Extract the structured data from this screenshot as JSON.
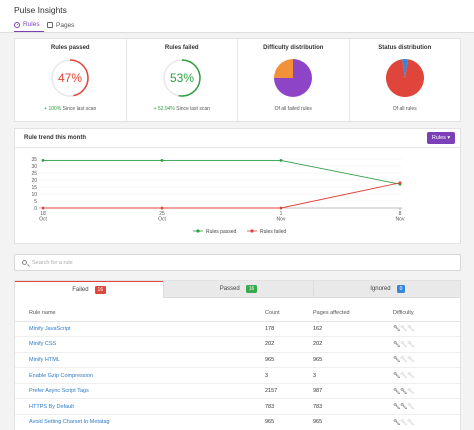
{
  "app": {
    "title": "Pulse Insights"
  },
  "nav": {
    "tabs": [
      {
        "label": "Rules",
        "icon": "rules-icon"
      },
      {
        "label": "Pages",
        "icon": "pages-icon"
      }
    ]
  },
  "summary": {
    "rules_passed": {
      "title": "Rules passed",
      "value": "47%",
      "percent": 47,
      "delta": "+ 100%",
      "delta_text": "Since last scan",
      "color": "#e0453b"
    },
    "rules_failed": {
      "title": "Rules failed",
      "value": "53%",
      "percent": 53,
      "delta": "+ 52.94%",
      "delta_text": "Since last scan",
      "color": "#2e9f44"
    },
    "difficulty": {
      "title": "Difficulty distribution",
      "caption": "Of all failed rules",
      "slices": [
        {
          "value": 75,
          "color": "#8e44c7"
        },
        {
          "value": 25,
          "color": "#f2913a"
        }
      ]
    },
    "status": {
      "title": "Status distribution",
      "caption": "Of all rules",
      "slices": [
        {
          "value": 95,
          "color": "#e0453b"
        },
        {
          "value": 5,
          "color": "#3a86d6"
        }
      ]
    }
  },
  "trend": {
    "title": "Rule trend this month",
    "button_label": "Rules ▾",
    "chart_data": {
      "type": "line",
      "x": [
        "18 Oct",
        "25 Oct",
        "1 Nov",
        "8 Nov"
      ],
      "x_lines": [
        [
          "18",
          "Oct"
        ],
        [
          "25",
          "Oct"
        ],
        [
          "1",
          "Nov"
        ],
        [
          "8",
          "Nov"
        ]
      ],
      "ylim": [
        0,
        35
      ],
      "yticks": [
        0,
        5,
        10,
        15,
        20,
        25,
        30,
        35
      ],
      "series": [
        {
          "name": "Rules passed",
          "color": "#2e9f44",
          "values": [
            34,
            34,
            34,
            17
          ]
        },
        {
          "name": "Rules failed",
          "color": "#e0453b",
          "values": [
            0,
            0,
            0,
            18
          ]
        }
      ],
      "legend": "bottom"
    }
  },
  "search": {
    "placeholder": "Search for a rule",
    "value": ""
  },
  "result_tabs": [
    {
      "label": "Failed",
      "count": "16",
      "color": "red"
    },
    {
      "label": "Passed",
      "count": "16",
      "color": "green"
    },
    {
      "label": "Ignored",
      "count": "0",
      "color": "blue"
    }
  ],
  "table": {
    "headers": [
      "Rule name",
      "Count",
      "Pages affected",
      "Difficulty"
    ],
    "rows": [
      {
        "name": "Minify JavaScript",
        "count": "178",
        "pages": "162",
        "difficulty": 1
      },
      {
        "name": "Minify CSS",
        "count": "202",
        "pages": "202",
        "difficulty": 1
      },
      {
        "name": "Minify HTML",
        "count": "965",
        "pages": "965",
        "difficulty": 1
      },
      {
        "name": "Enable Gzip Compression",
        "count": "3",
        "pages": "3",
        "difficulty": 1
      },
      {
        "name": "Prefer Async Script Tags",
        "count": "2157",
        "pages": "987",
        "difficulty": 2
      },
      {
        "name": "HTTPS By Default",
        "count": "783",
        "pages": "783",
        "difficulty": 2
      },
      {
        "name": "Avoid Setting Charset In Metatag",
        "count": "965",
        "pages": "965",
        "difficulty": 1
      }
    ]
  }
}
